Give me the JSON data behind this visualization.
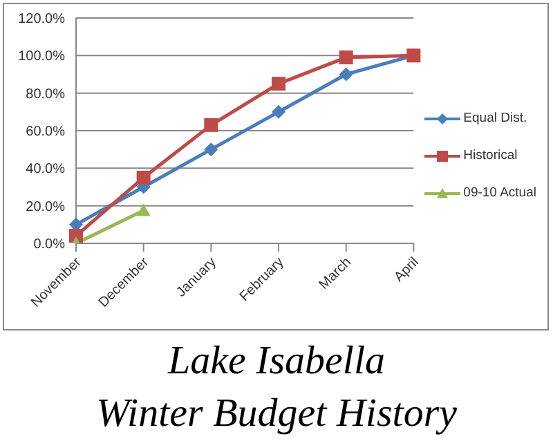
{
  "chart_data": {
    "type": "line",
    "title": "Lake Isabella\nWinter Budget History",
    "categories": [
      "November",
      "December",
      "January",
      "February",
      "March",
      "April"
    ],
    "series": [
      {
        "name": "Equal Dist.",
        "color": "#4a7ebb",
        "marker": "diamond",
        "values": [
          10,
          30,
          50,
          70,
          90,
          100
        ]
      },
      {
        "name": "Historical",
        "color": "#be4b48",
        "marker": "square",
        "values": [
          4,
          35,
          63,
          85,
          99,
          100
        ]
      },
      {
        "name": "09-10 Actual",
        "color": "#98b954",
        "marker": "triangle",
        "values": [
          0,
          17.5,
          null,
          null,
          null,
          null
        ]
      }
    ],
    "ylim": [
      0,
      120
    ],
    "yticks": [
      {
        "value": 0,
        "label": "0.0%"
      },
      {
        "value": 20,
        "label": "20.0%"
      },
      {
        "value": 40,
        "label": "40.0%"
      },
      {
        "value": 60,
        "label": "60.0%"
      },
      {
        "value": 80,
        "label": "80.0%"
      },
      {
        "value": 100,
        "label": "100.0%"
      },
      {
        "value": 120,
        "label": "120.0%"
      }
    ],
    "grid": "y",
    "legend": "right",
    "line_style": "solid"
  }
}
